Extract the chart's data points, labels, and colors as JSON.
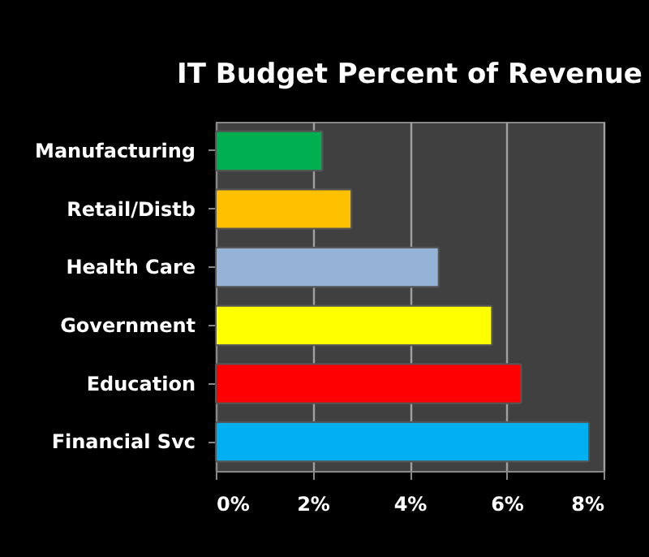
{
  "chart_data": {
    "type": "bar",
    "orientation": "horizontal",
    "title": "IT Budget Percent of Revenue",
    "categories": [
      "Manufacturing",
      "Retail/Distb",
      "Health Care",
      "Government",
      "Education",
      "Financial Svc"
    ],
    "values": [
      2.2,
      2.8,
      4.6,
      5.7,
      6.3,
      7.7
    ],
    "colors": [
      "#00b050",
      "#ffc000",
      "#95b3d7",
      "#ffff00",
      "#ff0000",
      "#00b0f0"
    ],
    "xlim": [
      0,
      8
    ],
    "xticks": [
      {
        "value": 0,
        "label": "0%"
      },
      {
        "value": 2,
        "label": "2%"
      },
      {
        "value": 4,
        "label": "4%"
      },
      {
        "value": 6,
        "label": "6%"
      },
      {
        "value": 8,
        "label": "8%"
      }
    ],
    "grid": "x"
  }
}
